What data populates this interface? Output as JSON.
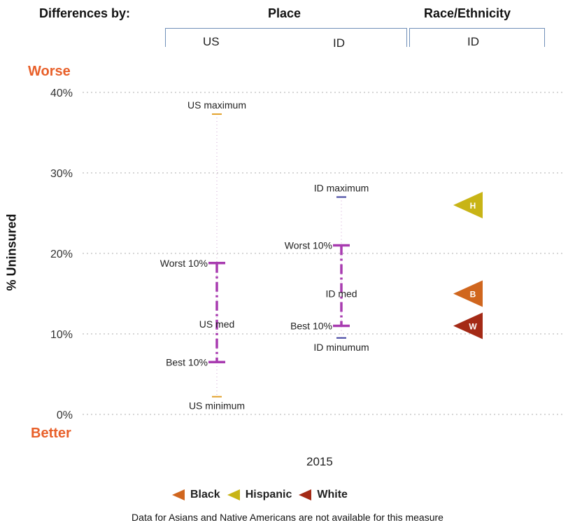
{
  "header": {
    "differences_by": "Differences by:",
    "place": "Place",
    "race_ethnicity": "Race/Ethnicity",
    "sub_us": "US",
    "sub_id_place": "ID",
    "sub_id_race": "ID"
  },
  "labels": {
    "worse": "Worse",
    "better": "Better",
    "ylabel": "% Uninsured",
    "year": "2015",
    "note": "Data for Asians and Native Americans are not available for this measure"
  },
  "legend": [
    {
      "label": "Black",
      "color": "#d0661e",
      "letter": "B"
    },
    {
      "label": "Hispanic",
      "color": "#c8b416",
      "letter": "H"
    },
    {
      "label": "White",
      "color": "#a42a16",
      "letter": "W"
    }
  ],
  "chart_data": {
    "type": "scatter",
    "ylabel": "% Uninsured",
    "ylim": [
      0,
      40
    ],
    "yticks": [
      "0%",
      "10%",
      "20%",
      "30%",
      "40%"
    ],
    "grid": true,
    "groups": [
      {
        "name": "US",
        "minimum": 2.2,
        "minimum_label": "US minimum",
        "best10": 6.5,
        "best10_label": "Best 10%",
        "median": 11.2,
        "median_label": "US med",
        "worst10": 18.8,
        "worst10_label": "Worst 10%",
        "maximum": 37.3,
        "maximum_label": "US maximum"
      },
      {
        "name": "ID",
        "minimum": 9.5,
        "minimum_label": "ID minumum",
        "best10": 11.0,
        "best10_label": "Best 10%",
        "median": 15.0,
        "median_label": "ID med",
        "worst10": 21.0,
        "worst10_label": "Worst 10%",
        "maximum": 27.0,
        "maximum_label": "ID maximum"
      }
    ],
    "race_ethnicity": [
      {
        "group": "Hispanic",
        "letter": "H",
        "value": 26.0
      },
      {
        "group": "Black",
        "letter": "B",
        "value": 15.0
      },
      {
        "group": "White",
        "letter": "W",
        "value": 11.0
      }
    ],
    "colors": {
      "range": "#a83bb0",
      "us_min_max": "#e2a12a",
      "id_min_max": "#3d3f9e"
    }
  }
}
